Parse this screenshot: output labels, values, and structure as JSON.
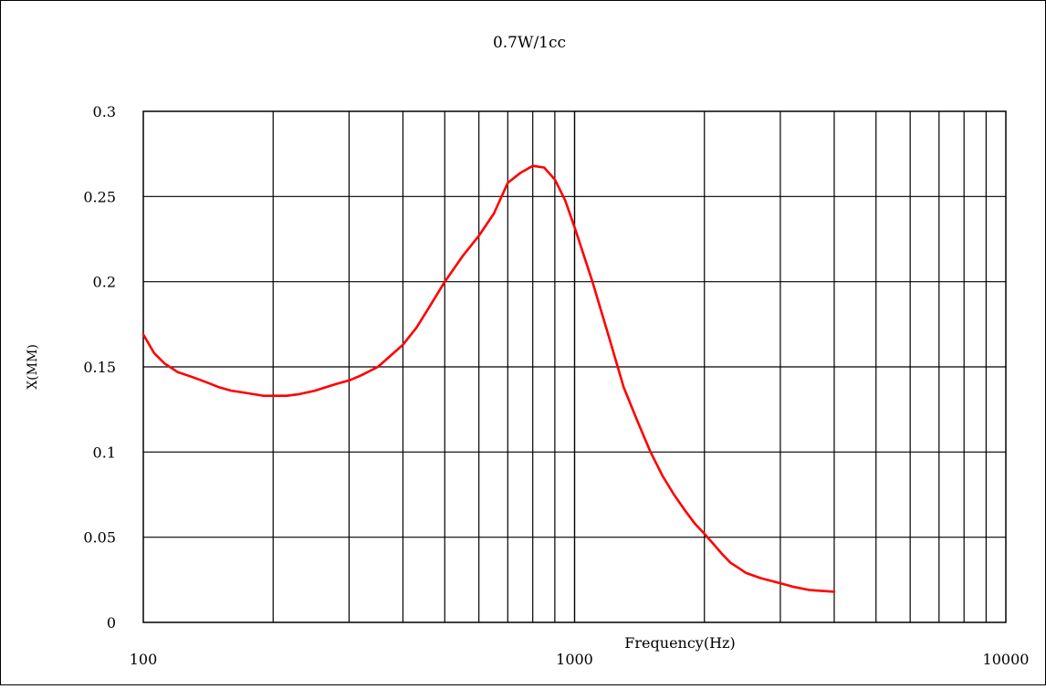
{
  "chart_data": {
    "type": "line",
    "title": "0.7W/1cc",
    "xlabel": "Frequency(Hz)",
    "ylabel": "X(MM)",
    "x_scale": "log",
    "xlim": [
      100,
      10000
    ],
    "ylim": [
      0,
      0.3
    ],
    "x_ticks": [
      {
        "value": 100,
        "label": "100"
      },
      {
        "value": 1000,
        "label": "1000"
      },
      {
        "value": 10000,
        "label": "10000"
      }
    ],
    "y_ticks": [
      {
        "value": 0,
        "label": "0"
      },
      {
        "value": 0.05,
        "label": "0.05"
      },
      {
        "value": 0.1,
        "label": "0.1"
      },
      {
        "value": 0.15,
        "label": "0.15"
      },
      {
        "value": 0.2,
        "label": "0.2"
      },
      {
        "value": 0.25,
        "label": "0.25"
      },
      {
        "value": 0.3,
        "label": "0.3"
      }
    ],
    "grid": true,
    "legend": "none",
    "series": [
      {
        "color": "#ff0000",
        "x": [
          100,
          106,
          112,
          120,
          130,
          140,
          150,
          160,
          170,
          180,
          190,
          200,
          215,
          230,
          250,
          280,
          300,
          320,
          350,
          380,
          400,
          430,
          460,
          500,
          550,
          600,
          650,
          700,
          750,
          800,
          850,
          900,
          950,
          1000,
          1100,
          1200,
          1300,
          1400,
          1500,
          1600,
          1700,
          1800,
          1900,
          2000,
          2100,
          2200,
          2300,
          2400,
          2500,
          2700,
          3000,
          3200,
          3500,
          4000
        ],
        "y": [
          0.169,
          0.158,
          0.152,
          0.147,
          0.144,
          0.141,
          0.138,
          0.136,
          0.135,
          0.134,
          0.133,
          0.133,
          0.133,
          0.134,
          0.136,
          0.14,
          0.142,
          0.145,
          0.15,
          0.158,
          0.163,
          0.173,
          0.185,
          0.2,
          0.215,
          0.227,
          0.24,
          0.258,
          0.264,
          0.268,
          0.267,
          0.26,
          0.248,
          0.232,
          0.2,
          0.168,
          0.138,
          0.118,
          0.1,
          0.086,
          0.075,
          0.066,
          0.058,
          0.052,
          0.046,
          0.04,
          0.035,
          0.032,
          0.029,
          0.026,
          0.023,
          0.021,
          0.019,
          0.018
        ]
      }
    ]
  }
}
